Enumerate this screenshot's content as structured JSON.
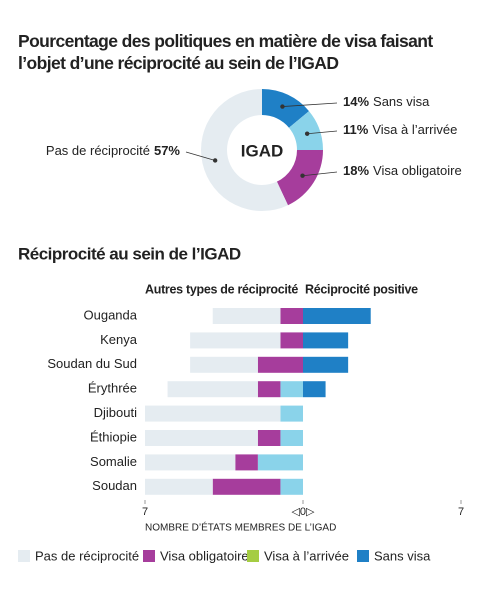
{
  "chart_data": [
    {
      "type": "donut",
      "title": "Pourcentage des politiques en matière de visa faisant l’objet d’une réciprocité au sein de l’IGAD",
      "center_label": "IGAD",
      "categories": [
        "Sans visa",
        "Visa à l’arrivée",
        "Visa obligatoire",
        "Pas de réciprocité"
      ],
      "values": [
        14,
        11,
        18,
        57
      ],
      "value_labels": [
        "14%",
        "11%",
        "18%",
        "57%"
      ],
      "colors": [
        "#1f80c6",
        "#8ad3ea",
        "#a63d9c",
        "#e5ecf1"
      ]
    },
    {
      "type": "diverging-bar",
      "title": "Réciprocité au sein de l’IGAD",
      "left_header": "Autres types de réciprocité",
      "right_header": "Réciprocité positive",
      "x_label": "NOMBRE D’ÉTATS MEMBRES DE L’IGAD",
      "categories": [
        "Ouganda",
        "Kenya",
        "Soudan du Sud",
        "Érythrée",
        "Djibouti",
        "Éthiopie",
        "Somalie",
        "Soudan"
      ],
      "series": [
        {
          "name": "Pas de réciprocité",
          "color": "#e5ecf1",
          "values": [
            -3,
            -4,
            -3,
            -4,
            -6,
            -5,
            -4,
            -3
          ]
        },
        {
          "name": "Visa obligatoire",
          "color": "#a63d9c",
          "values": [
            -1,
            -1,
            -2,
            -1,
            0,
            -1,
            -1,
            -3
          ]
        },
        {
          "name": "Visa à l’arrivée",
          "color": "#8ad3ea",
          "legend_color": "#a5cd42",
          "values": [
            0,
            0,
            0,
            -1,
            -1,
            -1,
            -2,
            -1
          ]
        },
        {
          "name": "Sans visa",
          "color": "#1f80c6",
          "values": [
            3,
            2,
            2,
            1,
            0,
            0,
            0,
            0
          ]
        }
      ],
      "xlim": [
        -7,
        7
      ],
      "xticks": [
        {
          "value": -7,
          "label": "7"
        },
        {
          "value": 0,
          "label": "◁0▷"
        },
        7
      ]
    }
  ]
}
